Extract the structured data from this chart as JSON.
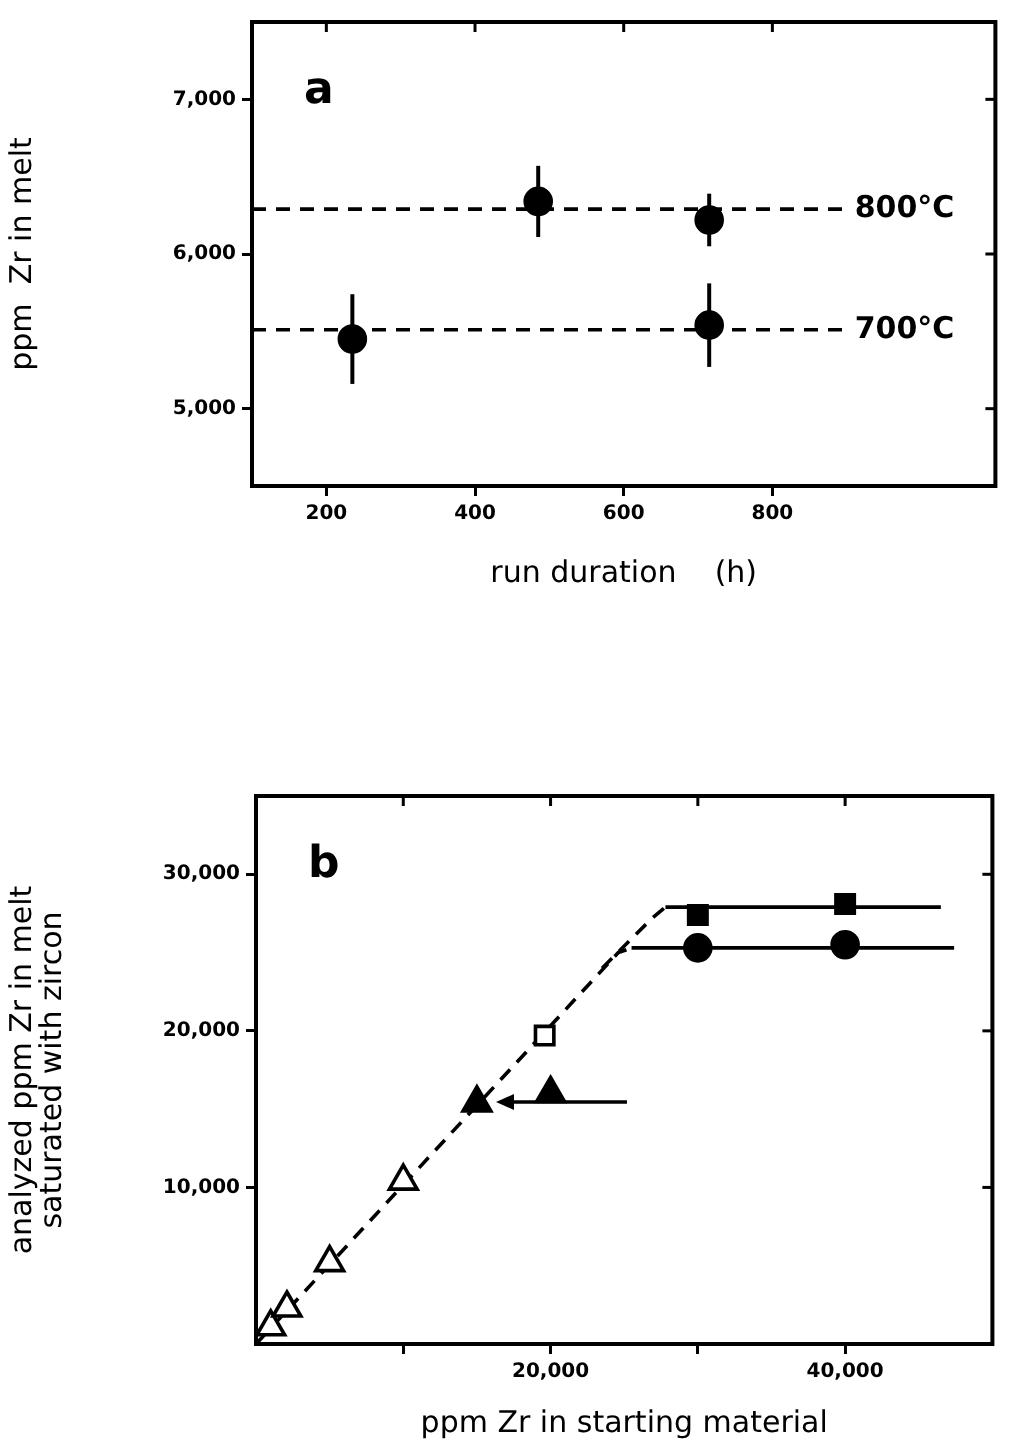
{
  "chart_data": [
    {
      "type": "scatter",
      "title": "a",
      "xlabel": "run duration    (h)",
      "ylabel": "ppm  Zr in melt",
      "xlim": [
        100,
        1100
      ],
      "xticks": [
        200,
        400,
        600,
        800
      ],
      "ylim": [
        4500,
        7500
      ],
      "yticks": [
        {
          "value": 5000,
          "label": "5,000"
        },
        {
          "value": 6000,
          "label": "6,000"
        },
        {
          "value": 7000,
          "label": "7,000"
        }
      ],
      "marker": "circle",
      "grid": false,
      "legend": false,
      "series": [
        {
          "type": "line",
          "name": "800°C",
          "line_style": "dashed",
          "marker": "none",
          "color": "#000000",
          "x": [
            100,
            900
          ],
          "values": [
            6290,
            6290
          ]
        },
        {
          "type": "line",
          "name": "700°C",
          "line_style": "dashed",
          "marker": "none",
          "color": "#000000",
          "x": [
            100,
            900
          ],
          "values": [
            5510,
            5510
          ]
        },
        {
          "color": "#000000",
          "x": [
            235,
            485,
            715,
            715
          ],
          "values": [
            5450,
            6340,
            6220,
            5540
          ],
          "errors": [
            290,
            230,
            170,
            270
          ]
        }
      ]
    },
    {
      "type": "scatter",
      "title": "b",
      "xlabel": "ppm Zr in starting material",
      "ylabel": "analyzed ppm Zr in melt\nsaturated with zircon",
      "xlim": [
        0,
        50000
      ],
      "xticks": [
        {
          "value": 10000,
          "label": null
        },
        {
          "value": 20000,
          "label": "20,000"
        },
        {
          "value": 30000,
          "label": null
        },
        {
          "value": 40000,
          "label": "40,000"
        }
      ],
      "ylim": [
        0,
        35000
      ],
      "yticks": [
        {
          "value": 10000,
          "label": "10,000"
        },
        {
          "value": 20000,
          "label": "20,000"
        },
        {
          "value": 30000,
          "label": "30,000"
        }
      ],
      "grid": false,
      "legend": false,
      "series": [
        {
          "type": "line",
          "line_style": "dashed",
          "marker": "none",
          "color": "#000000",
          "x": [
            0,
            24600,
            25500
          ],
          "values": [
            0,
            25000,
            25300
          ]
        },
        {
          "type": "line",
          "line_style": "solid",
          "marker": "none",
          "color": "#000000",
          "x": [
            25500,
            47400
          ],
          "values": [
            25300,
            25300
          ]
        },
        {
          "type": "line",
          "line_style": "dashed",
          "marker": "none",
          "color": "#000000",
          "x": [
            23500,
            26900,
            27800
          ],
          "values": [
            24000,
            27200,
            27900
          ]
        },
        {
          "type": "line",
          "line_style": "solid",
          "marker": "none",
          "color": "#000000",
          "x": [
            27800,
            46500
          ],
          "values": [
            27900,
            27900
          ]
        },
        {
          "marker": "triangle",
          "color": "#ffffff",
          "x": [
            1000,
            2100,
            5000,
            10000
          ],
          "values": [
            1100,
            2300,
            5200,
            10400
          ]
        },
        {
          "marker": "triangle",
          "color": "#000000",
          "x": [
            15000,
            20000
          ],
          "values": [
            15400,
            16000
          ]
        },
        {
          "marker": "square",
          "color": "#ffffff",
          "x": [
            19600
          ],
          "values": [
            19700
          ]
        },
        {
          "marker": "square",
          "color": "#000000",
          "x": [
            30000,
            40000
          ],
          "values": [
            27400,
            28100
          ]
        },
        {
          "marker": "circle",
          "color": "#000000",
          "x": [
            30000,
            40000
          ],
          "values": [
            25300,
            25500
          ]
        }
      ]
    }
  ]
}
